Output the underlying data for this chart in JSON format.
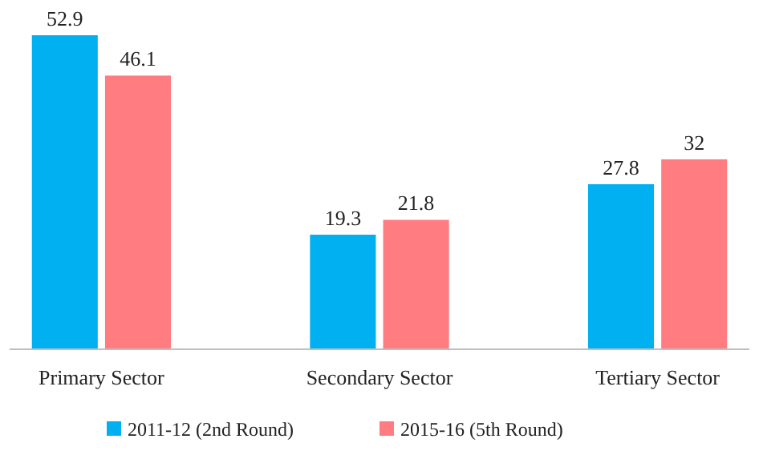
{
  "chart_data": {
    "type": "bar",
    "categories": [
      "Primary Sector",
      "Secondary Sector",
      "Tertiary Sector"
    ],
    "series": [
      {
        "name": "2011-12 (2nd Round)",
        "color": "#00b0f0",
        "values": [
          52.9,
          19.3,
          27.8
        ]
      },
      {
        "name": "2015-16 (5th Round)",
        "color": "#ff7c80",
        "values": [
          46.1,
          21.8,
          32
        ]
      }
    ],
    "data_labels": true,
    "legend": "bottom"
  }
}
